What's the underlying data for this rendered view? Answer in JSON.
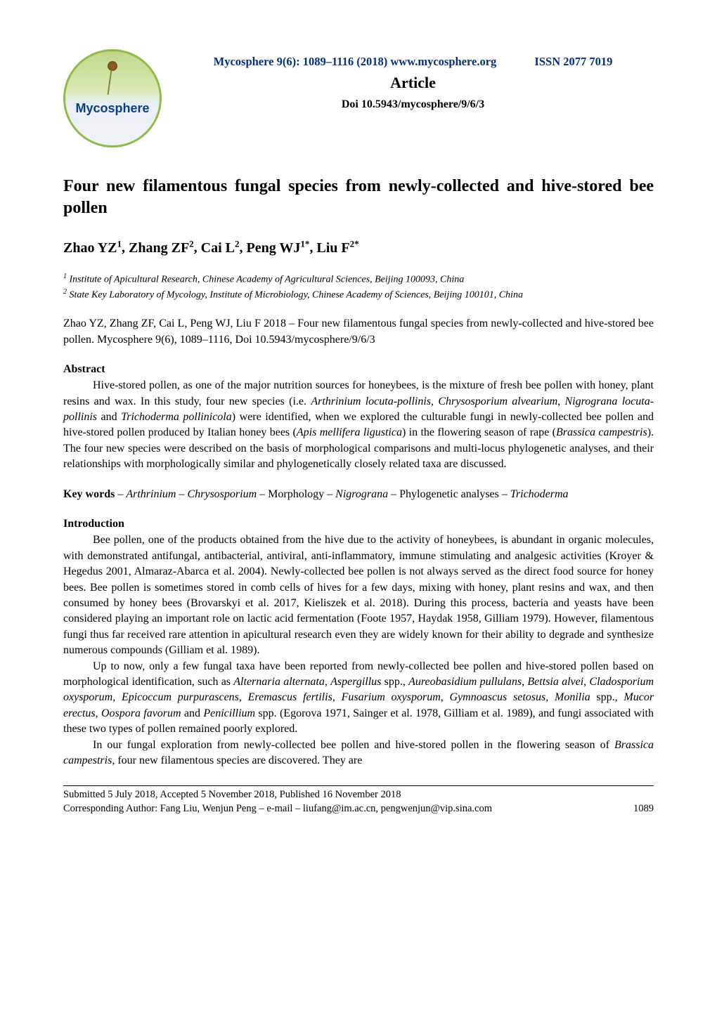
{
  "header": {
    "journal_line_left": "Mycosphere 9(6): 1089–1116 (2018)  www.mycosphere.org",
    "issn": "ISSN 2077 7019",
    "article_label": "Article",
    "doi": "Doi 10.5943/mycosphere/9/6/3",
    "logo_text": "Mycosphere",
    "journal_color": "#0a2f7a",
    "logo_border_color": "#94b84e",
    "logo_gradient": [
      "#c0d88a",
      "#d8e8b0",
      "#e8eff5",
      "#f0f4f8"
    ],
    "logo_text_color": "#0a3e85"
  },
  "title": "Four new filamentous fungal species from newly-collected and hive-stored bee pollen",
  "authors_html": "Zhao YZ¹, Zhang ZF², Cai L², Peng WJ¹*, Liu F²*",
  "authors": {
    "line": "Zhao YZ, Zhang ZF, Cai L, Peng WJ, Liu F",
    "superscripts": [
      "1",
      "2",
      "2",
      "1*",
      "2*"
    ]
  },
  "affiliations": [
    {
      "sup": "1",
      "text": "Institute of Apicultural Research, Chinese Academy of Agricultural Sciences, Beijing 100093, China"
    },
    {
      "sup": "2",
      "text": "State Key Laboratory of Mycology, Institute of Microbiology, Chinese Academy of Sciences, Beijing 100101, China"
    }
  ],
  "citation": "Zhao YZ, Zhang ZF, Cai L, Peng WJ, Liu F 2018 – Four new filamentous fungal species from newly-collected and hive-stored bee pollen. Mycosphere 9(6), 1089–1116, Doi 10.5943/mycosphere/9/6/3",
  "abstract": {
    "heading": "Abstract",
    "body": "Hive-stored pollen, as one of the major nutrition sources for honeybees, is the mixture of fresh bee pollen with honey, plant resins and wax. In this study, four new species (i.e. Arthrinium locuta-pollinis, Chrysosporium alvearium, Nigrograna locuta-pollinis and Trichoderma pollinicola) were identified, when we explored the culturable fungi in newly-collected bee pollen and hive-stored pollen produced by Italian honey bees (Apis mellifera ligustica) in the flowering season of rape (Brassica campestris). The four new species were described on the basis of morphological comparisons and multi-locus phylogenetic analyses, and their relationships with morphologically similar and phylogenetically closely related taxa are discussed.",
    "italic_terms": [
      "Arthrinium locuta-pollinis",
      "Chrysosporium alvearium",
      "Nigrograna locuta-pollinis",
      "Trichoderma pollinicola",
      "Apis mellifera ligustica",
      "Brassica campestris"
    ]
  },
  "keywords": {
    "prefix": "Key words",
    "body": " – Arthrinium – Chrysosporium – Morphology – Nigrograna – Phylogenetic analyses – Trichoderma",
    "italic_terms": [
      "Arthrinium",
      "Chrysosporium",
      "Nigrograna",
      "Trichoderma"
    ]
  },
  "introduction": {
    "heading": "Introduction",
    "paragraphs": [
      "Bee pollen, one of the products obtained from the hive due to the activity of honeybees, is abundant in organic molecules, with demonstrated antifungal, antibacterial, antiviral, anti-inflammatory, immune stimulating and analgesic activities (Kroyer & Hegedus 2001, Almaraz-Abarca et al. 2004). Newly-collected bee pollen is not always served as the direct food source for honey bees. Bee pollen is sometimes stored in comb cells of hives for a few days, mixing with honey, plant resins and wax, and then consumed by honey bees (Brovarskyi et al. 2017, Kieliszek et al. 2018). During this process, bacteria and yeasts have been considered playing an important role on lactic acid fermentation (Foote 1957, Haydak 1958, Gilliam 1979). However, filamentous fungi thus far received rare attention in apicultural research even they are widely known for their ability to degrade and synthesize numerous compounds (Gilliam et al. 1989).",
      "Up to now, only a few fungal taxa have been reported from newly-collected bee pollen and hive-stored pollen based on morphological identification, such as Alternaria alternata, Aspergillus spp., Aureobasidium pullulans, Bettsia alvei, Cladosporium oxysporum, Epicoccum purpurascens, Eremascus fertilis, Fusarium oxysporum, Gymnoascus setosus, Monilia spp., Mucor erectus, Oospora favorum and Penicillium spp. (Egorova 1971, Sainger et al. 1978, Gilliam et al. 1989), and fungi associated with these two types of pollen remained poorly explored.",
      "In our fungal exploration from newly-collected bee pollen and hive-stored pollen in the flowering season of Brassica campestris, four new filamentous species are discovered. They are"
    ],
    "italic_terms_p2": [
      "Alternaria alternata",
      "Aspergillus",
      "Aureobasidium pullulans",
      "Bettsia alvei",
      "Cladosporium oxysporum",
      "Epicoccum purpurascens",
      "Eremascus fertilis",
      "Fusarium oxysporum",
      "Gymnoascus setosus",
      "Monilia",
      "Mucor erectus",
      "Oospora favorum",
      "Penicillium"
    ],
    "italic_terms_p3": [
      "Brassica campestris"
    ]
  },
  "footer": {
    "line1": "Submitted 5 July 2018, Accepted 5 November 2018, Published 16 November 2018",
    "line2_left": "Corresponding Author: Fang Liu, Wenjun Peng – e-mail – liufang@im.ac.cn, pengwenjun@vip.sina.com",
    "page_number": "1089"
  },
  "typography": {
    "body_font": "Times New Roman",
    "body_size_pt": 12,
    "title_size_pt": 18,
    "authors_size_pt": 15,
    "affil_size_pt": 10.5,
    "footer_size_pt": 11
  },
  "colors": {
    "text": "#000000",
    "background": "#ffffff",
    "journal_blue": "#0a2f7a"
  }
}
